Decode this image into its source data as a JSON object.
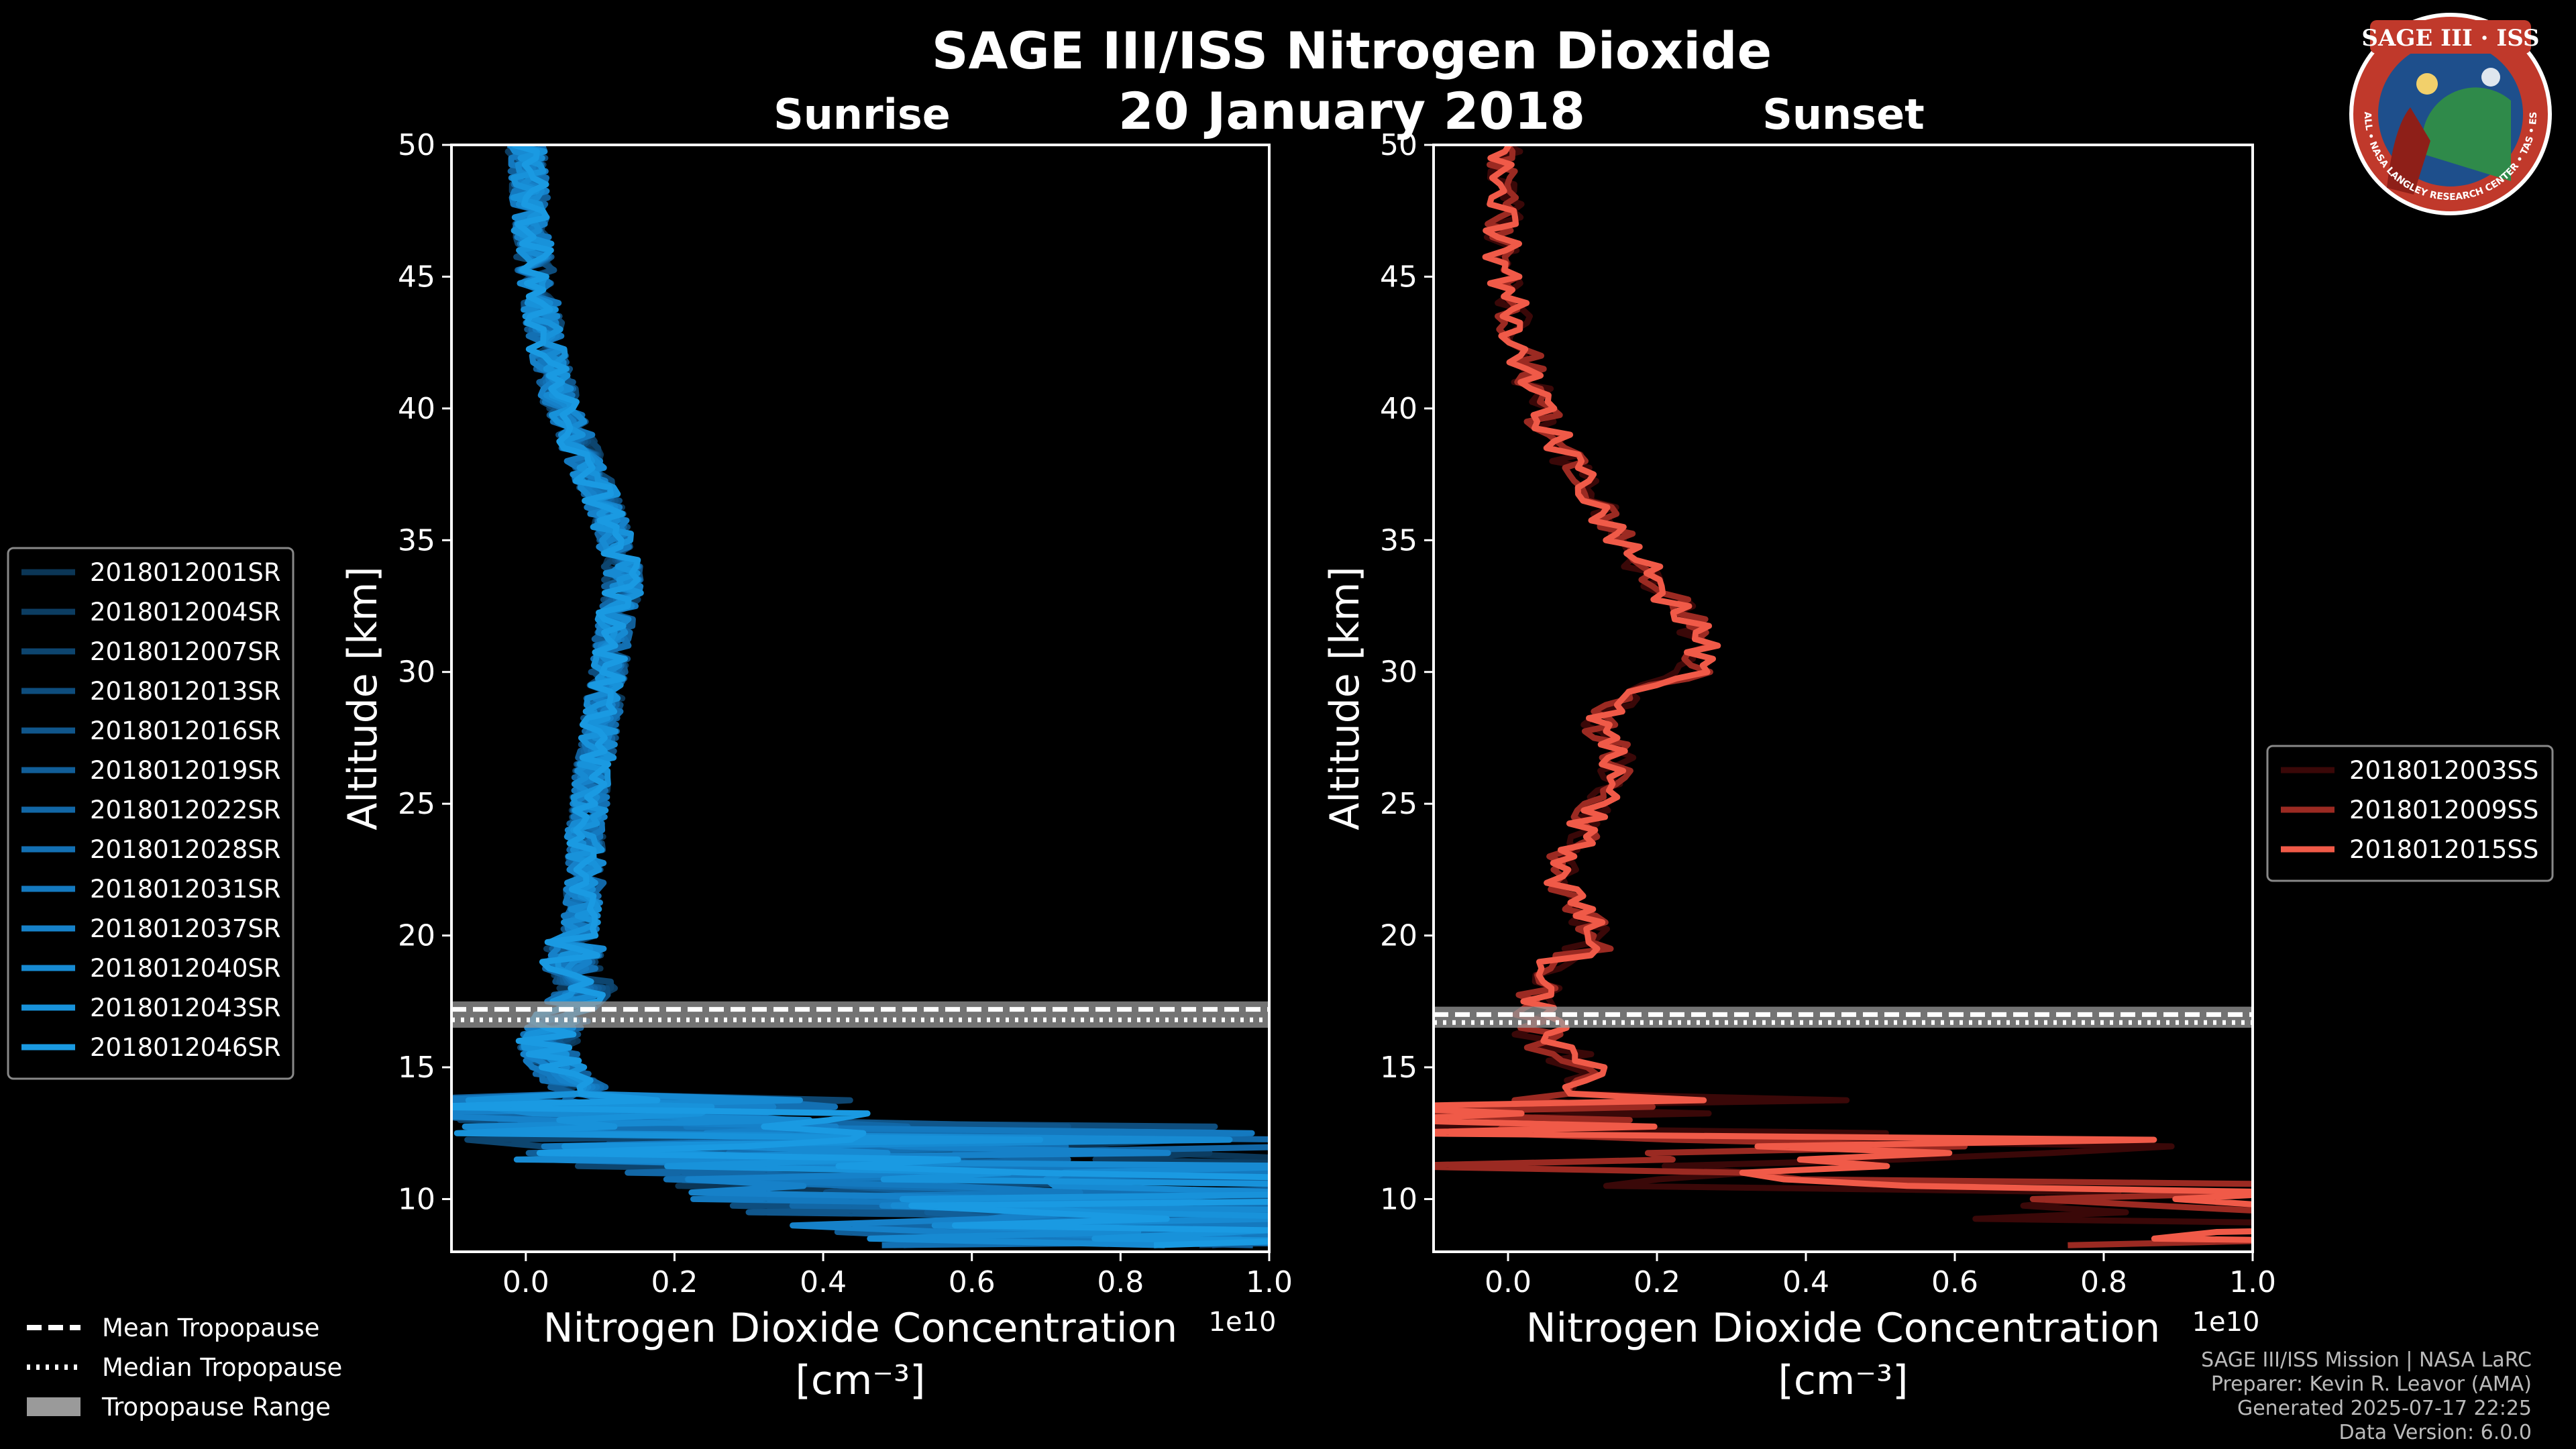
{
  "header": {
    "title": "SAGE III/ISS Nitrogen Dioxide",
    "date": "20 January 2018"
  },
  "logo": {
    "name": "SAGE III · ISS",
    "ring_text": "BALL • NASA LANGLEY RESEARCH CENTER • TAS • ESA",
    "colors": {
      "ring": "#c0392b",
      "field": "#1e4f8c",
      "border": "#ffffff"
    }
  },
  "chart_data": [
    {
      "type": "line",
      "title": "Sunrise",
      "xlabel": "Nitrogen Dioxide Concentration",
      "xunit": "[cm⁻³]",
      "ylabel": "Altitude [km]",
      "xlim": [
        -0.1,
        1.0
      ],
      "ylim": [
        8,
        50
      ],
      "x_offset_label": "1e10",
      "x_ticks": [
        "0.0",
        "0.2",
        "0.4",
        "0.6",
        "0.8",
        "1.0"
      ],
      "y_ticks": [
        "10",
        "15",
        "20",
        "25",
        "30",
        "35",
        "40",
        "45",
        "50"
      ],
      "tropopause": {
        "min": 16.5,
        "max": 17.5,
        "mean": 17.2,
        "median": 16.8
      },
      "legend_position": "left",
      "series": [
        {
          "name": "2018012001SR",
          "color": "#0b3656"
        },
        {
          "name": "2018012004SR",
          "color": "#0c3d62"
        },
        {
          "name": "2018012007SR",
          "color": "#0d456f"
        },
        {
          "name": "2018012013SR",
          "color": "#0e4d7d"
        },
        {
          "name": "2018012016SR",
          "color": "#10568b"
        },
        {
          "name": "2018012019SR",
          "color": "#115e98"
        },
        {
          "name": "2018012022SR",
          "color": "#1267a6"
        },
        {
          "name": "2018012028SR",
          "color": "#1370b3"
        },
        {
          "name": "2018012031SR",
          "color": "#1479bf"
        },
        {
          "name": "2018012037SR",
          "color": "#1681c9"
        },
        {
          "name": "2018012040SR",
          "color": "#178ad2"
        },
        {
          "name": "2018012043SR",
          "color": "#1892da"
        },
        {
          "name": "2018012046SR",
          "color": "#1a9ae2"
        }
      ],
      "profile": {
        "alt": [
          50,
          48,
          46,
          44,
          42,
          40,
          38,
          36,
          35,
          34,
          33,
          32,
          30,
          28,
          26,
          24,
          22,
          20,
          19,
          18,
          17,
          16,
          15,
          14,
          13,
          12,
          11,
          10,
          9,
          8.5
        ],
        "value": [
          0.0,
          0.005,
          0.01,
          0.02,
          0.03,
          0.05,
          0.08,
          0.11,
          0.12,
          0.13,
          0.13,
          0.12,
          0.11,
          0.1,
          0.09,
          0.08,
          0.08,
          0.07,
          0.06,
          0.08,
          0.05,
          0.03,
          0.04,
          0.08,
          0.15,
          0.25,
          0.4,
          0.55,
          0.7,
          0.8
        ]
      }
    },
    {
      "type": "line",
      "title": "Sunset",
      "xlabel": "Nitrogen Dioxide Concentration",
      "xunit": "[cm⁻³]",
      "ylabel": "Altitude [km]",
      "xlim": [
        -0.1,
        1.0
      ],
      "ylim": [
        8,
        50
      ],
      "x_offset_label": "1e10",
      "x_ticks": [
        "0.0",
        "0.2",
        "0.4",
        "0.6",
        "0.8",
        "1.0"
      ],
      "y_ticks": [
        "10",
        "15",
        "20",
        "25",
        "30",
        "35",
        "40",
        "45",
        "50"
      ],
      "tropopause": {
        "min": 16.5,
        "max": 17.3,
        "mean": 17.0,
        "median": 16.7
      },
      "legend_position": "right",
      "series": [
        {
          "name": "2018012003SS",
          "color": "#3a0808"
        },
        {
          "name": "2018012009SS",
          "color": "#9b2a22"
        },
        {
          "name": "2018012015SS",
          "color": "#f05a48"
        }
      ],
      "profile": {
        "alt": [
          50,
          48,
          46,
          44,
          42,
          40,
          38,
          36,
          34,
          32,
          31,
          30,
          29,
          28,
          27,
          26,
          25,
          24,
          22,
          21,
          20,
          19,
          18,
          17,
          16,
          15,
          14,
          13,
          12,
          11,
          10,
          9
        ],
        "value": [
          -0.01,
          0.0,
          -0.01,
          0.0,
          0.02,
          0.04,
          0.08,
          0.13,
          0.18,
          0.24,
          0.26,
          0.25,
          0.15,
          0.12,
          0.15,
          0.14,
          0.12,
          0.1,
          0.06,
          0.1,
          0.12,
          0.08,
          0.04,
          0.03,
          0.05,
          0.1,
          0.12,
          0.15,
          0.05,
          0.2,
          0.6,
          0.9
        ]
      }
    }
  ],
  "tropopause_legend": [
    {
      "label": "Mean Tropopause",
      "style": "dashed"
    },
    {
      "label": "Median Tropopause",
      "style": "dotted"
    },
    {
      "label": "Tropopause Range",
      "style": "band"
    }
  ],
  "footer": {
    "line1": "SAGE III/ISS Mission | NASA LaRC",
    "line2": "Preparer: Kevin R. Leavor (AMA)",
    "line3": "Generated 2025-07-17 22:25",
    "line4": "Data Version: 6.0.0"
  }
}
